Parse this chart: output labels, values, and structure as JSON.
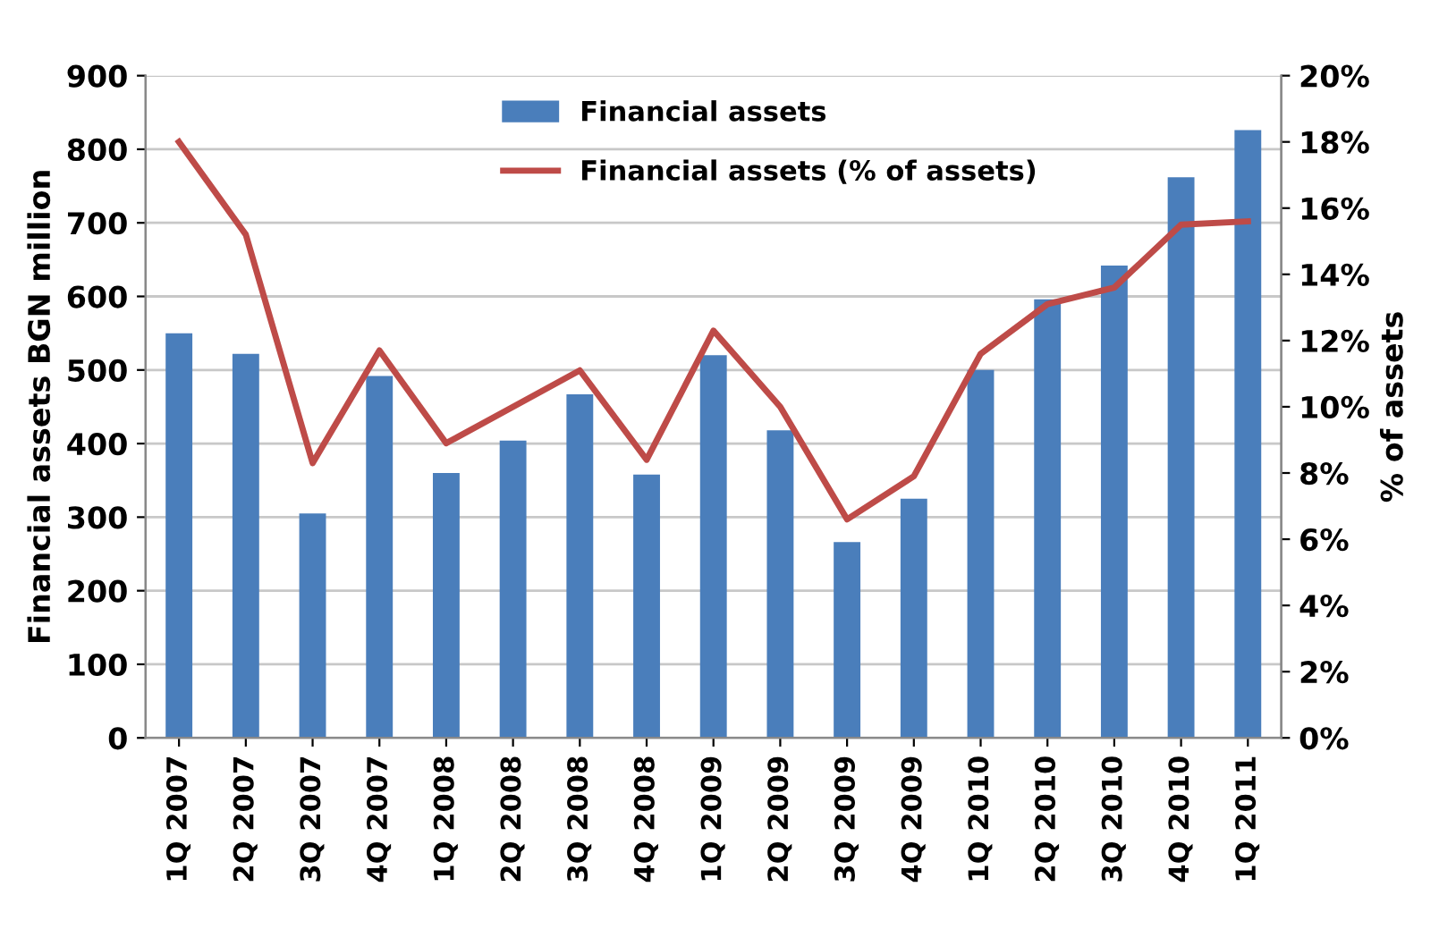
{
  "chart_data": {
    "type": "bar",
    "ylabel": "Financial assets BGN million",
    "y2label": "% of assets",
    "categories": [
      "1Q 2007",
      "2Q 2007",
      "3Q 2007",
      "4Q 2007",
      "1Q 2008",
      "2Q 2008",
      "3Q 2008",
      "4Q 2008",
      "1Q 2009",
      "2Q 2009",
      "3Q 2009",
      "4Q 2009",
      "1Q 2010",
      "2Q 2010",
      "3Q 2010",
      "4Q 2010",
      "1Q 2011"
    ],
    "series": [
      {
        "name": "Financial assets",
        "color": "#4a7ebb",
        "values": [
          550,
          522,
          305,
          492,
          360,
          404,
          467,
          358,
          520,
          418,
          266,
          325,
          500,
          596,
          642,
          762,
          826
        ]
      },
      {
        "name": "Financial assets (% of assets)",
        "type": "line",
        "axis": "y2",
        "color": "#be4b48",
        "values": [
          18,
          15.2,
          8.3,
          11.7,
          8.9,
          10,
          11.1,
          8.4,
          12.3,
          10,
          6.6,
          7.9,
          11.6,
          13.1,
          13.6,
          15.5,
          15.6
        ]
      }
    ],
    "ylim": [
      0,
      900
    ],
    "yticks": [
      0,
      100,
      200,
      300,
      400,
      500,
      600,
      700,
      800,
      900
    ],
    "y2lim": [
      0,
      20
    ],
    "y2ticks": [
      {
        "value": 0,
        "label": "0%"
      },
      {
        "value": 2,
        "label": "2%"
      },
      {
        "value": 4,
        "label": "4%"
      },
      {
        "value": 6,
        "label": "6%"
      },
      {
        "value": 8,
        "label": "8%"
      },
      {
        "value": 10,
        "label": "10%"
      },
      {
        "value": 12,
        "label": "12%"
      },
      {
        "value": 14,
        "label": "14%"
      },
      {
        "value": 16,
        "label": "16%"
      },
      {
        "value": 18,
        "label": "18%"
      },
      {
        "value": 20,
        "label": "20%"
      }
    ],
    "grid": "y",
    "legend": "top",
    "marker": "none",
    "line_style": "solid"
  }
}
